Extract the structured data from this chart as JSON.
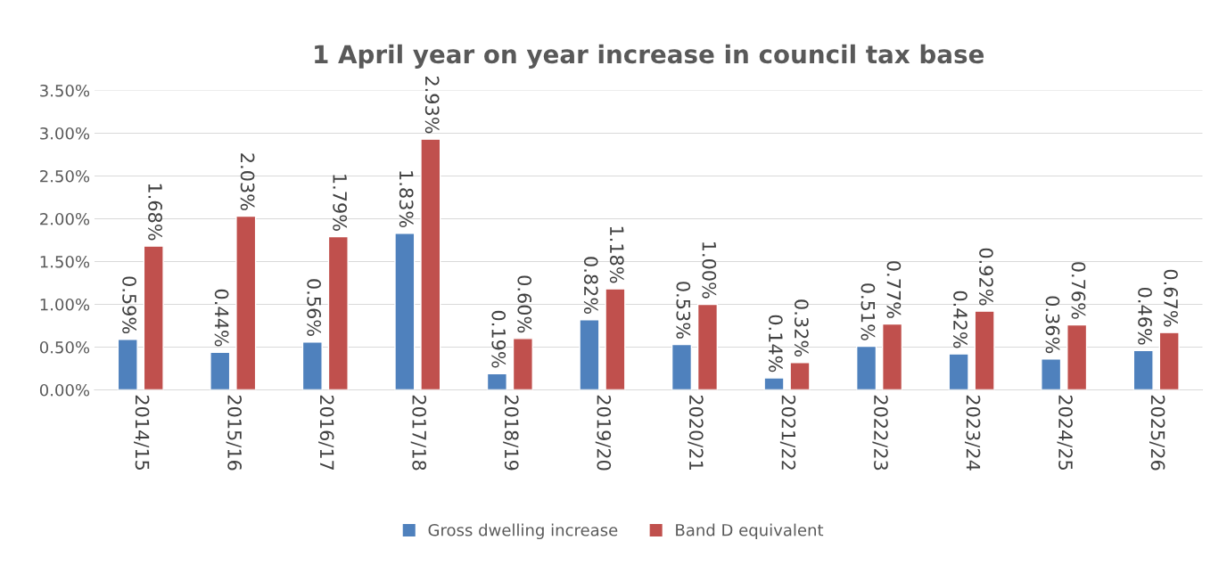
{
  "chart_data": {
    "type": "bar",
    "title": "1 April year on year increase in council tax base",
    "categories": [
      "2014/15",
      "2015/16",
      "2016/17",
      "2017/18",
      "2018/19",
      "2019/20",
      "2020/21",
      "2021/22",
      "2022/23",
      "2023/24",
      "2024/25",
      "2025/26"
    ],
    "series": [
      {
        "name": "Gross dwelling increase",
        "color": "#4f81bd",
        "values": [
          0.59,
          0.44,
          0.56,
          1.83,
          0.19,
          0.82,
          0.53,
          0.14,
          0.51,
          0.42,
          0.36,
          0.46
        ],
        "value_labels": [
          "0.59%",
          "0.44%",
          "0.56%",
          "1.83%",
          "0.19%",
          "0.82%",
          "0.53%",
          "0.14%",
          "0.51%",
          "0.42%",
          "0.36%",
          "0.46%"
        ]
      },
      {
        "name": "Band D equivalent",
        "color": "#c0504d",
        "values": [
          1.68,
          2.03,
          1.79,
          2.93,
          0.6,
          1.18,
          1.0,
          0.32,
          0.77,
          0.92,
          0.76,
          0.67
        ],
        "value_labels": [
          "1.68%",
          "2.03%",
          "1.79%",
          "2.93%",
          "0.60%",
          "1.18%",
          "1.00%",
          "0.32%",
          "0.77%",
          "0.92%",
          "0.76%",
          "0.67%"
        ]
      }
    ],
    "ylim": [
      0,
      3.5
    ],
    "yticks": [
      {
        "value": 0,
        "label": "0.00%"
      },
      {
        "value": 0.5,
        "label": "0.50%"
      },
      {
        "value": 1,
        "label": "1.00%"
      },
      {
        "value": 1.5,
        "label": "1.50%"
      },
      {
        "value": 2,
        "label": "2.00%"
      },
      {
        "value": 2.5,
        "label": "2.50%"
      },
      {
        "value": 3,
        "label": "3.00%"
      },
      {
        "value": 3.5,
        "label": "3.50%"
      }
    ],
    "grid": "y",
    "legend": "bottom"
  }
}
